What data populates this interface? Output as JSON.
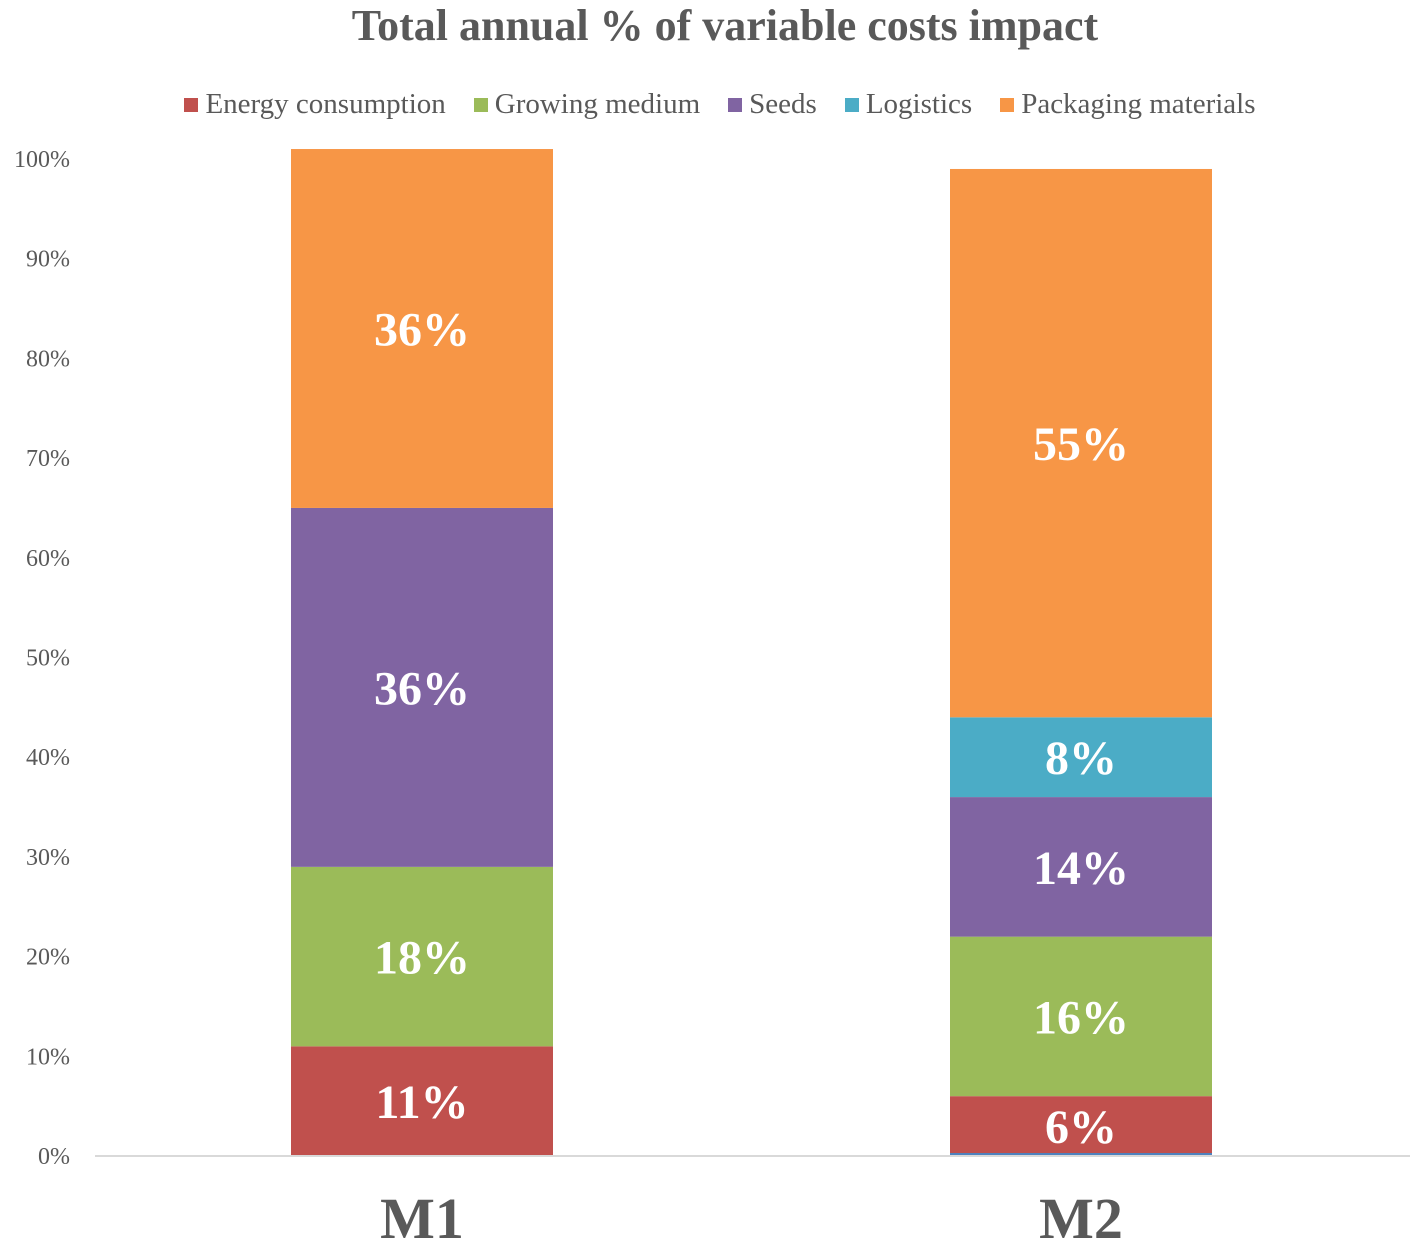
{
  "chart_data": {
    "type": "bar",
    "stacked": true,
    "title": "Total annual % of variable costs impact",
    "categories": [
      "M1",
      "M2"
    ],
    "xlabel": "",
    "ylabel": "",
    "ylim": [
      0,
      100
    ],
    "y_ticks": [
      "0%",
      "10%",
      "20%",
      "30%",
      "40%",
      "50%",
      "60%",
      "70%",
      "80%",
      "90%",
      "100%"
    ],
    "legend_position": "top",
    "series": [
      {
        "name": "Energy consumption",
        "color": "#C0504D",
        "values": [
          11,
          6
        ],
        "labels": [
          "11%",
          "6%"
        ]
      },
      {
        "name": "Growing medium",
        "color": "#9BBB59",
        "values": [
          18,
          16
        ],
        "labels": [
          "18%",
          "16%"
        ]
      },
      {
        "name": "Seeds",
        "color": "#8064A2",
        "values": [
          36,
          14
        ],
        "labels": [
          "36%",
          "14%"
        ]
      },
      {
        "name": "Logistics",
        "color": "#4BACC6",
        "values": [
          0,
          8
        ],
        "labels": [
          "",
          "8%"
        ]
      },
      {
        "name": "Packaging materials",
        "color": "#F79646",
        "values": [
          36,
          55
        ],
        "labels": [
          "36%",
          "55%"
        ]
      }
    ]
  }
}
